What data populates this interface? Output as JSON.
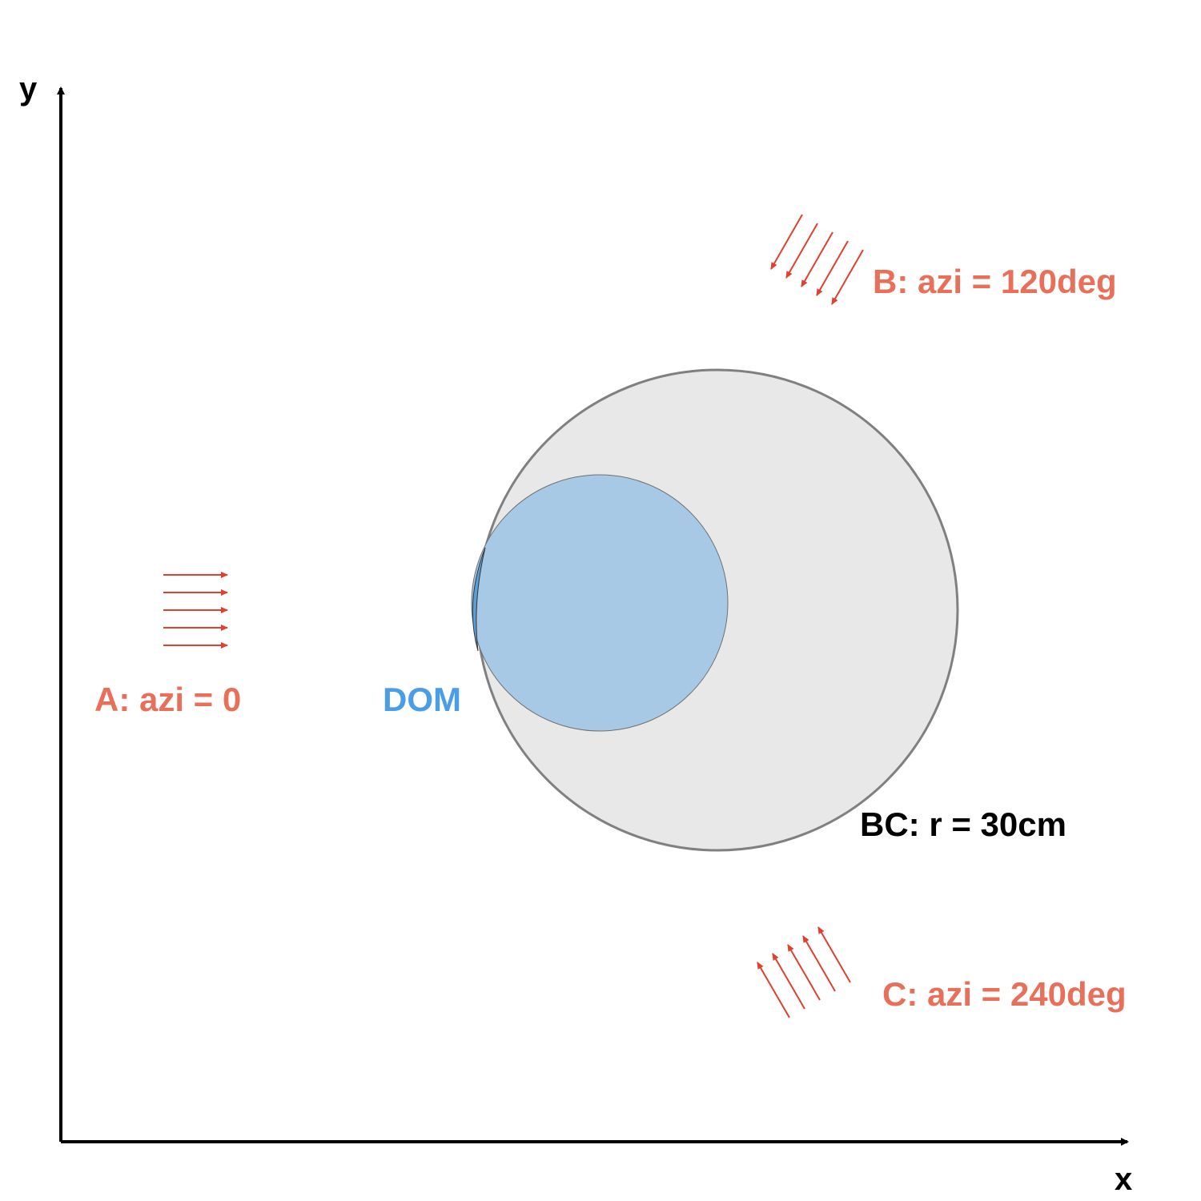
{
  "axes": {
    "x_label": "x",
    "y_label": "y"
  },
  "beams": [
    {
      "label": "A: azi = 0",
      "azimuth_deg": 0
    },
    {
      "label": "B: azi = 120deg",
      "azimuth_deg": 120
    },
    {
      "label": "C: azi = 240deg",
      "azimuth_deg": 240
    }
  ],
  "dom": {
    "label": "DOM"
  },
  "bc": {
    "label": "BC: r = 30cm"
  },
  "colors": {
    "beam": "#e0402e",
    "beam_label": "#e8705a",
    "dom": "#a7c9e6",
    "dom_label": "#4a9ee8",
    "bc_fill": "#e8e8e8",
    "bc_stroke": "#808080",
    "axis": "#000000"
  }
}
